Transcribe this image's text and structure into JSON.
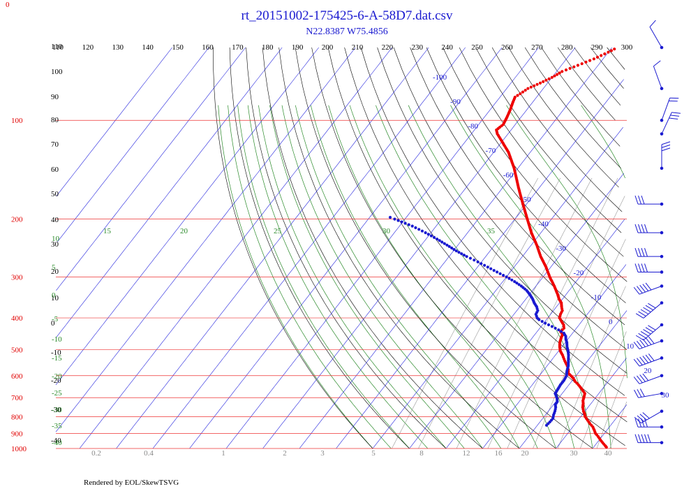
{
  "chart_data": {
    "type": "scatter",
    "title": "rt_20151002-175425-6-A-58D7.dat.csv",
    "subtitle": "N22.8387 W75.4856",
    "footer": "Rendered by EOL/SkewTSVG",
    "corner_label": "0",
    "colors": {
      "temperature": "#ee0000",
      "dewpoint": "#1a1ad0",
      "isobar": "#ee3333",
      "isotherm": "#2222dd",
      "dry_adiabat": "#000000",
      "moist_adiabat": "#2a8a2a",
      "mixing_ratio": "#999999",
      "wind": "#1a1ad0"
    },
    "temperature_top_labels": [
      "110",
      "120",
      "130",
      "140",
      "150",
      "160",
      "170",
      "180",
      "190",
      "200",
      "210",
      "220",
      "230",
      "240",
      "250",
      "260",
      "270",
      "280",
      "290",
      "300"
    ],
    "pressure_labels": [
      {
        "value": 100,
        "text": "100"
      },
      {
        "value": 200,
        "text": "200"
      },
      {
        "value": 300,
        "text": "300"
      },
      {
        "value": 400,
        "text": "400"
      },
      {
        "value": 500,
        "text": "500"
      },
      {
        "value": 600,
        "text": "600"
      },
      {
        "value": 700,
        "text": "700"
      },
      {
        "value": 800,
        "text": "800"
      },
      {
        "value": 900,
        "text": "900"
      },
      {
        "value": 1000,
        "text": "1000"
      }
    ],
    "isotherm_labels": [
      {
        "t": -100,
        "text": "-100"
      },
      {
        "t": -90,
        "text": "-90"
      },
      {
        "t": -80,
        "text": "-80"
      },
      {
        "t": -70,
        "text": "-70"
      },
      {
        "t": -60,
        "text": "-60"
      },
      {
        "t": -50,
        "text": "-50"
      },
      {
        "t": -40,
        "text": "-40"
      },
      {
        "t": -30,
        "text": "-30"
      },
      {
        "t": -20,
        "text": "-20"
      },
      {
        "t": -10,
        "text": "-10"
      },
      {
        "t": 0,
        "text": "0"
      },
      {
        "t": 10,
        "text": "10"
      },
      {
        "t": 20,
        "text": "20"
      },
      {
        "t": 30,
        "text": "30"
      }
    ],
    "dry_adiabat_labels": [
      {
        "text": "110",
        "p": 100
      },
      {
        "text": "100",
        "p": 100
      },
      {
        "text": "90",
        "p": 100
      },
      {
        "text": "80",
        "p": 100
      },
      {
        "text": "70",
        "p": 100
      },
      {
        "text": "60",
        "p": 100
      },
      {
        "text": "50",
        "p": 100
      },
      {
        "text": "40",
        "p": 100
      },
      {
        "text": "30",
        "p": 100
      },
      {
        "text": "20",
        "p": 100
      },
      {
        "text": "10",
        "p": 100
      },
      {
        "text": "0",
        "p": 100
      },
      {
        "text": "-10",
        "p": 100
      },
      {
        "text": "-20",
        "p": 100
      },
      {
        "text": "-30",
        "p": 100
      },
      {
        "text": "-40",
        "p": 100
      }
    ],
    "moist_adiabat_labels": [
      "15",
      "20",
      "25",
      "30",
      "35",
      "10",
      "5",
      "0",
      "-5",
      "-10",
      "-15",
      "-20",
      "-25",
      "-30",
      "-35",
      "-40"
    ],
    "mixing_ratio_labels": [
      "0.2",
      "0.4",
      "1",
      "2",
      "3",
      "5",
      "8",
      "12",
      "16",
      "20",
      "30",
      "40"
    ],
    "temperature_profile": [
      [
        991,
        23.5
      ],
      [
        980,
        22.8
      ],
      [
        960,
        21.5
      ],
      [
        940,
        20.2
      ],
      [
        920,
        19.0
      ],
      [
        900,
        17.6
      ],
      [
        880,
        16.6
      ],
      [
        860,
        15.5
      ],
      [
        840,
        14.0
      ],
      [
        820,
        12.6
      ],
      [
        800,
        11.2
      ],
      [
        785,
        10.5
      ],
      [
        770,
        9.6
      ],
      [
        750,
        8.6
      ],
      [
        730,
        7.9
      ],
      [
        715,
        7.2
      ],
      [
        700,
        6.8
      ],
      [
        680,
        6.2
      ],
      [
        660,
        4.5
      ],
      [
        640,
        2.6
      ],
      [
        625,
        1.0
      ],
      [
        610,
        -0.3
      ],
      [
        600,
        -1.4
      ],
      [
        590,
        -2.6
      ],
      [
        575,
        -3.4
      ],
      [
        560,
        -4.5
      ],
      [
        540,
        -6.3
      ],
      [
        520,
        -8.0
      ],
      [
        505,
        -9.5
      ],
      [
        490,
        -10.6
      ],
      [
        475,
        -11.5
      ],
      [
        465,
        -11.9
      ],
      [
        458,
        -12.2
      ],
      [
        450,
        -12.4
      ],
      [
        440,
        -13.6
      ],
      [
        430,
        -13.4
      ],
      [
        420,
        -14.2
      ],
      [
        410,
        -15.5
      ],
      [
        400,
        -16.8
      ],
      [
        390,
        -17.3
      ],
      [
        380,
        -17.6
      ],
      [
        370,
        -18.6
      ],
      [
        360,
        -19.5
      ],
      [
        350,
        -21.0
      ],
      [
        340,
        -22.2
      ],
      [
        320,
        -25.0
      ],
      [
        300,
        -28.2
      ],
      [
        280,
        -31.3
      ],
      [
        260,
        -35.0
      ],
      [
        240,
        -38.5
      ],
      [
        220,
        -42.6
      ],
      [
        200,
        -46.6
      ],
      [
        180,
        -51.0
      ],
      [
        160,
        -55.8
      ],
      [
        140,
        -61.0
      ],
      [
        125,
        -66.0
      ],
      [
        115,
        -70.5
      ],
      [
        110,
        -72.9
      ],
      [
        107,
        -74.0
      ],
      [
        103,
        -73.3
      ],
      [
        98,
        -73.8
      ],
      [
        93,
        -74.5
      ],
      [
        88,
        -75.4
      ],
      [
        85,
        -75.9
      ],
      [
        83,
        -75.2
      ],
      [
        80,
        -74.2
      ],
      [
        77,
        -72.0
      ],
      [
        74,
        -70.0
      ],
      [
        71,
        -68.5
      ],
      [
        68,
        -65.5
      ],
      [
        65,
        -62.5
      ],
      [
        62,
        -60.0
      ],
      [
        60,
        -58.5
      ]
    ],
    "dewpoint_profile": [
      [
        850,
        2.5
      ],
      [
        830,
        2.7
      ],
      [
        810,
        2.8
      ],
      [
        790,
        2.2
      ],
      [
        770,
        1.8
      ],
      [
        750,
        1.2
      ],
      [
        735,
        0.5
      ],
      [
        720,
        0.4
      ],
      [
        705,
        -0.3
      ],
      [
        690,
        -1.2
      ],
      [
        680,
        -1.9
      ],
      [
        640,
        -2.3
      ],
      [
        620,
        -2.3
      ],
      [
        600,
        -2.6
      ],
      [
        580,
        -3.5
      ],
      [
        560,
        -4.2
      ],
      [
        540,
        -5.3
      ],
      [
        520,
        -6.4
      ],
      [
        505,
        -7.4
      ],
      [
        490,
        -8.6
      ],
      [
        475,
        -9.6
      ],
      [
        465,
        -10.5
      ],
      [
        455,
        -11.2
      ],
      [
        445,
        -12.4
      ],
      [
        435,
        -14.5
      ],
      [
        425,
        -17.0
      ],
      [
        415,
        -19.6
      ],
      [
        405,
        -22.0
      ],
      [
        400,
        -22.9
      ],
      [
        390,
        -24.0
      ],
      [
        380,
        -24.3
      ],
      [
        370,
        -25.4
      ],
      [
        360,
        -26.9
      ],
      [
        350,
        -28.2
      ],
      [
        340,
        -29.8
      ],
      [
        330,
        -31.6
      ],
      [
        320,
        -34.0
      ],
      [
        310,
        -36.8
      ],
      [
        300,
        -40.0
      ],
      [
        290,
        -43.6
      ],
      [
        280,
        -47.2
      ],
      [
        270,
        -51.0
      ],
      [
        260,
        -55.2
      ],
      [
        250,
        -59.2
      ],
      [
        240,
        -63.0
      ],
      [
        230,
        -67.0
      ],
      [
        220,
        -71.5
      ],
      [
        210,
        -76.5
      ],
      [
        200,
        -82.8
      ],
      [
        195,
        -86.0
      ]
    ],
    "wind_barbs": [
      {
        "p": 60,
        "speed_kt": 10,
        "dir_deg": 330
      },
      {
        "p": 80,
        "speed_kt": 10,
        "dir_deg": 340
      },
      {
        "p": 100,
        "speed_kt": 20,
        "dir_deg": 20
      },
      {
        "p": 110,
        "speed_kt": 30,
        "dir_deg": 25
      },
      {
        "p": 140,
        "speed_kt": 30,
        "dir_deg": 0
      },
      {
        "p": 180,
        "speed_kt": 30,
        "dir_deg": 270
      },
      {
        "p": 220,
        "speed_kt": 40,
        "dir_deg": 270
      },
      {
        "p": 260,
        "speed_kt": 40,
        "dir_deg": 270
      },
      {
        "p": 290,
        "speed_kt": 40,
        "dir_deg": 270
      },
      {
        "p": 320,
        "speed_kt": 50,
        "dir_deg": 250
      },
      {
        "p": 360,
        "speed_kt": 60,
        "dir_deg": 230
      },
      {
        "p": 420,
        "speed_kt": 60,
        "dir_deg": 230
      },
      {
        "p": 470,
        "speed_kt": 60,
        "dir_deg": 250
      },
      {
        "p": 530,
        "speed_kt": 60,
        "dir_deg": 250
      },
      {
        "p": 600,
        "speed_kt": 40,
        "dir_deg": 250
      },
      {
        "p": 680,
        "speed_kt": 30,
        "dir_deg": 260
      },
      {
        "p": 770,
        "speed_kt": 40,
        "dir_deg": 240
      },
      {
        "p": 860,
        "speed_kt": 40,
        "dir_deg": 270
      },
      {
        "p": 960,
        "speed_kt": 50,
        "dir_deg": 270
      }
    ],
    "p_range": [
      60,
      1000
    ],
    "grid": true
  }
}
